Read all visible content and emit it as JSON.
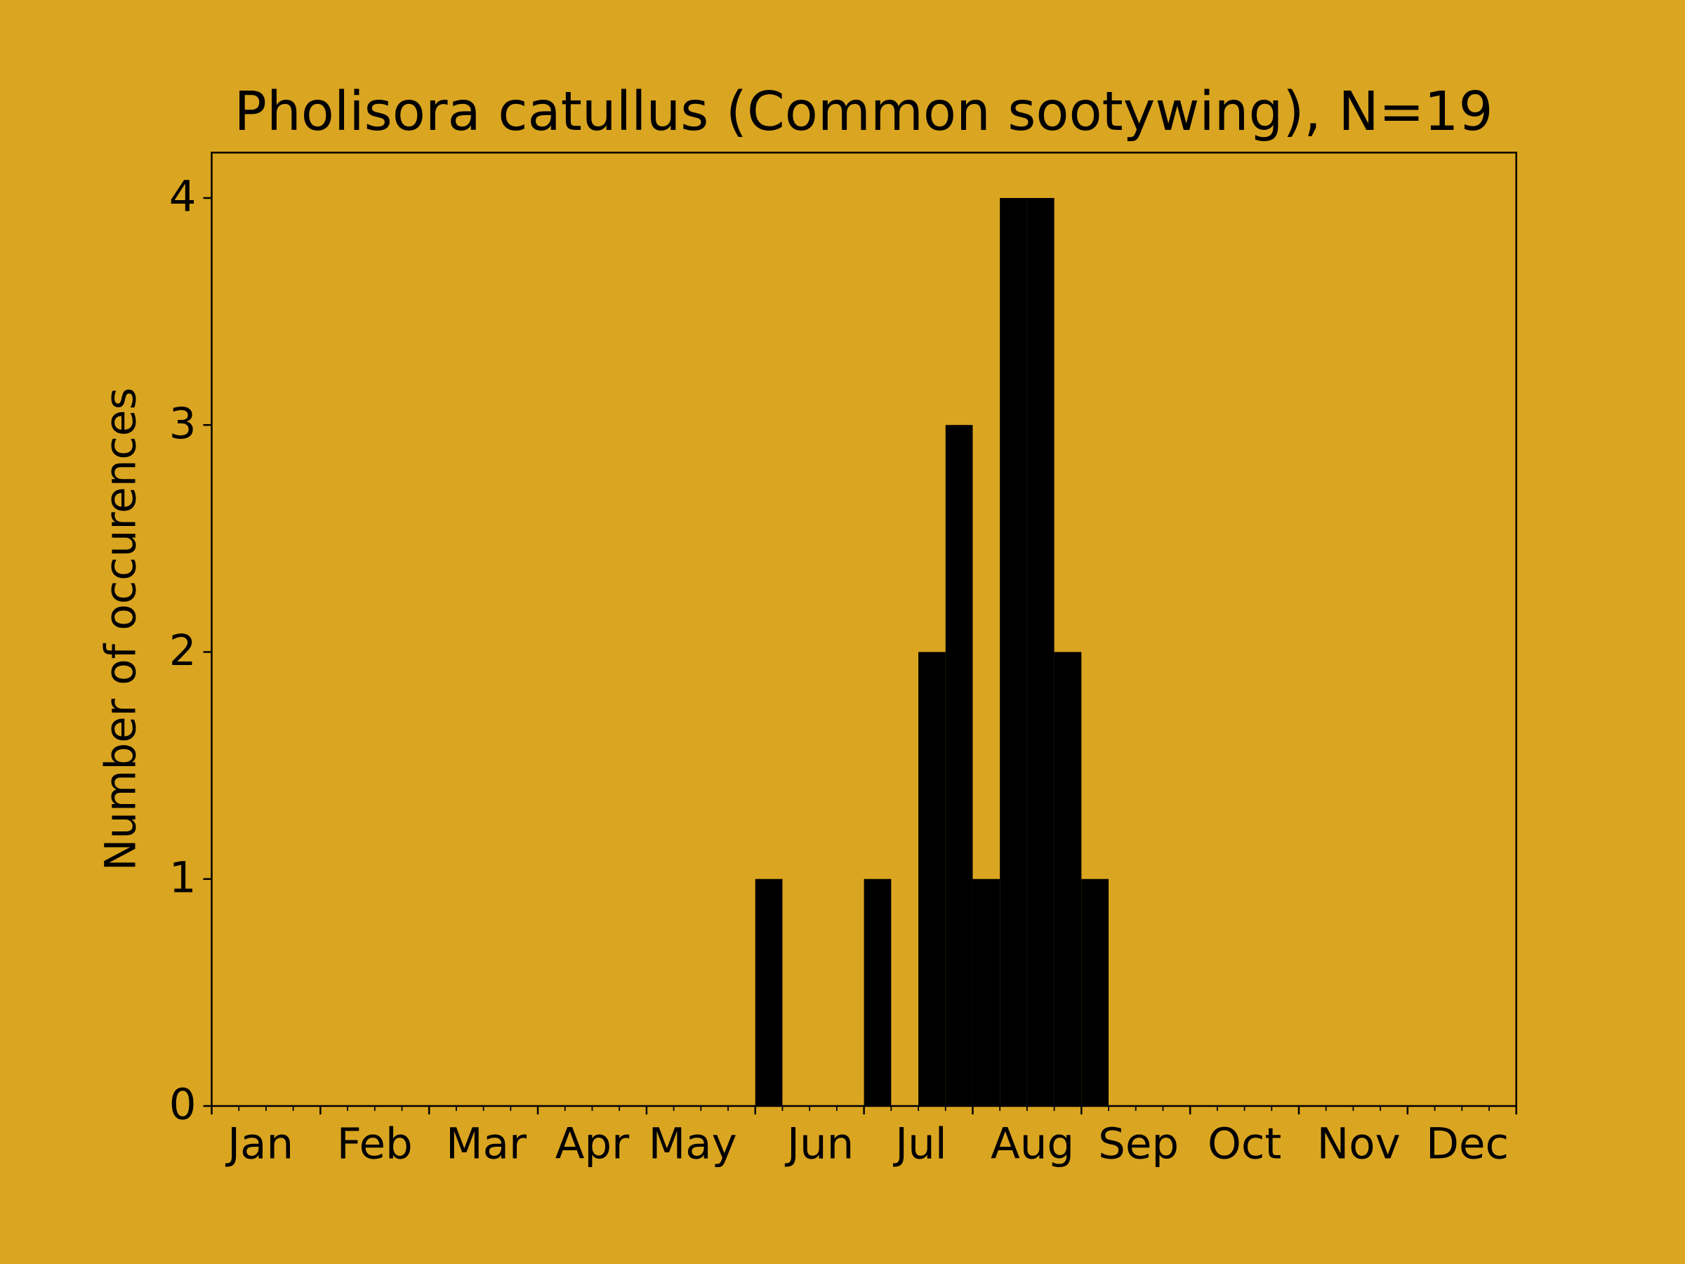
{
  "chart_data": {
    "type": "histogram",
    "title": "Pholisora catullus (Common sootywing), N=19",
    "ylabel": "Number of occurences",
    "bins": [
      0,
      1,
      2,
      3,
      4,
      5,
      6,
      7,
      8,
      9,
      10,
      11,
      12,
      13,
      14,
      15,
      16,
      17,
      18,
      19,
      20,
      21,
      22,
      23,
      24,
      25,
      26,
      27,
      28,
      29,
      30,
      31,
      32,
      33,
      34,
      35,
      36,
      37,
      38,
      39,
      40,
      41,
      42,
      43,
      44,
      45,
      46,
      47,
      48
    ],
    "counts": [
      0,
      0,
      0,
      0,
      0,
      0,
      0,
      0,
      0,
      0,
      0,
      0,
      0,
      0,
      0,
      0,
      0,
      0,
      0,
      0,
      1,
      0,
      0,
      0,
      1,
      0,
      2,
      3,
      1,
      4,
      4,
      2,
      1,
      0,
      0,
      0,
      0,
      0,
      0,
      0,
      0,
      0,
      0,
      0,
      0,
      0,
      0,
      0
    ],
    "color": "#000000",
    "background": "#daa520",
    "xlim": [
      0,
      48
    ],
    "ylim": [
      0,
      4.2
    ],
    "yticks": [
      0,
      1,
      2,
      3,
      4
    ],
    "xticks": [
      {
        "value": 1.8,
        "label": "Jan"
      },
      {
        "value": 6,
        "label": "Feb"
      },
      {
        "value": 10.1,
        "label": "Mar"
      },
      {
        "value": 14,
        "label": "Apr"
      },
      {
        "value": 17.7,
        "label": "May"
      },
      {
        "value": 22.4,
        "label": "Jun"
      },
      {
        "value": 26.1,
        "label": "Jul"
      },
      {
        "value": 30.2,
        "label": "Aug"
      },
      {
        "value": 34.1,
        "label": "Sep"
      },
      {
        "value": 38,
        "label": "Oct"
      },
      {
        "value": 42.2,
        "label": "Nov"
      },
      {
        "value": 46.2,
        "label": "Dec"
      }
    ],
    "xtick_marks": [
      0,
      4,
      8,
      12,
      16,
      20,
      24,
      28,
      32,
      36,
      40,
      44,
      48
    ],
    "xminor_ticks": [
      0,
      1,
      2,
      3,
      4,
      5,
      6,
      7,
      8,
      9,
      10,
      11,
      12,
      13,
      14,
      15,
      16,
      17,
      18,
      19,
      20,
      21,
      22,
      23,
      24,
      25,
      26,
      27,
      28,
      29,
      30,
      31,
      32,
      33,
      34,
      35,
      36,
      37,
      38,
      39,
      40,
      41,
      42,
      43,
      44,
      45,
      46,
      47,
      48
    ]
  }
}
